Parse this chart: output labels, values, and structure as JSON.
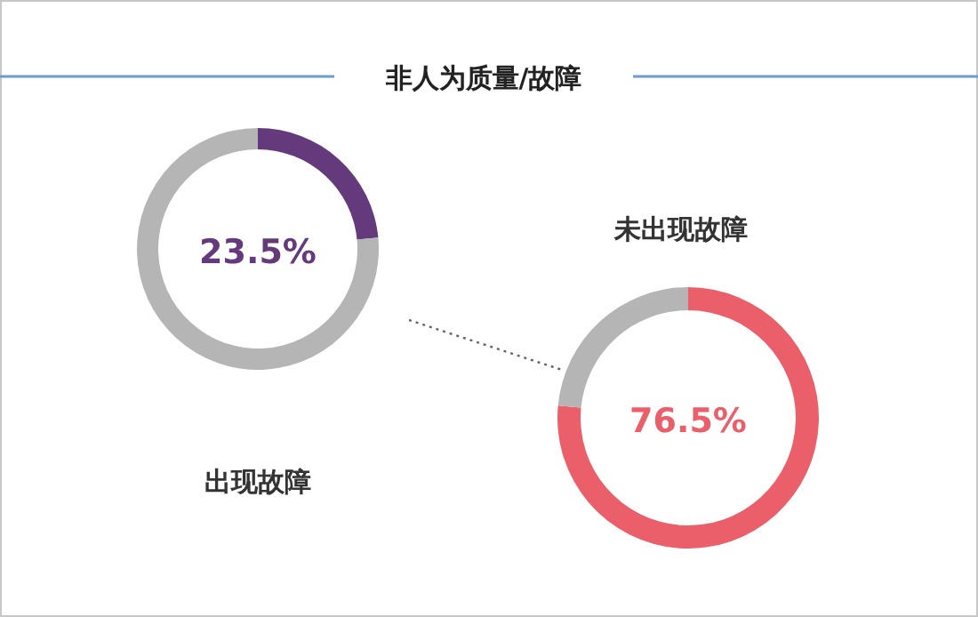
{
  "chart_data": [
    {
      "type": "donut",
      "title": "非人为质量/故障",
      "xlabel": "出现故障",
      "categories": [
        null,
        null
      ],
      "values": [
        23.5,
        76.5
      ],
      "colors": [
        "#643a7c",
        "#b5b5b5"
      ],
      "annotations": [
        "23.5%"
      ]
    },
    {
      "type": "donut",
      "title": "未出现故障",
      "categories": [
        null,
        null
      ],
      "values": [
        76.5,
        23.5
      ],
      "colors": [
        "#ea5f69",
        "#b5b5b5"
      ],
      "annotations": [
        "76.5%"
      ]
    }
  ]
}
